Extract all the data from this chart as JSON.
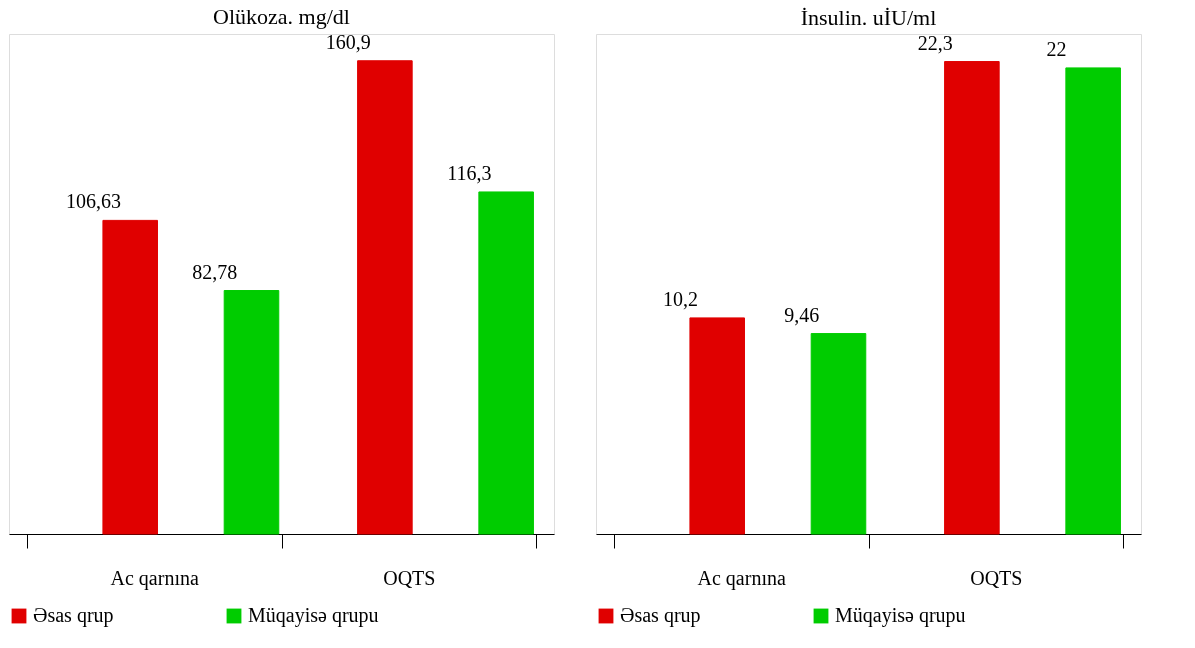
{
  "chart_data": [
    {
      "type": "bar",
      "title": "Olükoza. mg/dl",
      "categories": [
        "Ac qarnına",
        "OQTS"
      ],
      "ylim": [
        0,
        170
      ],
      "tick_labels": "x",
      "legend": "bottom",
      "grid": false,
      "series": [
        {
          "name": "Əsas qrup",
          "color": "#e00000",
          "values": [
            106.63,
            160.9
          ],
          "value_labels": [
            "106,63",
            "160,9"
          ]
        },
        {
          "name": "Müqayisə qrupu",
          "color": "#00cc00",
          "values": [
            82.78,
            116.3
          ],
          "value_labels": [
            "82,78",
            "116,3"
          ]
        }
      ]
    },
    {
      "type": "bar",
      "title": "İnsulin. uİU/ml",
      "categories": [
        "Ac qarnına",
        "OQTS"
      ],
      "ylim": [
        0,
        23.6
      ],
      "tick_labels": "x",
      "legend": "bottom",
      "grid": false,
      "series": [
        {
          "name": "Əsas qrup",
          "color": "#e00000",
          "values": [
            10.2,
            22.3
          ],
          "value_labels": [
            "10,2",
            "22,3"
          ]
        },
        {
          "name": "Müqayisə qrupu",
          "color": "#00cc00",
          "values": [
            9.46,
            22.0
          ],
          "value_labels": [
            "9,46",
            "22"
          ]
        }
      ]
    }
  ]
}
